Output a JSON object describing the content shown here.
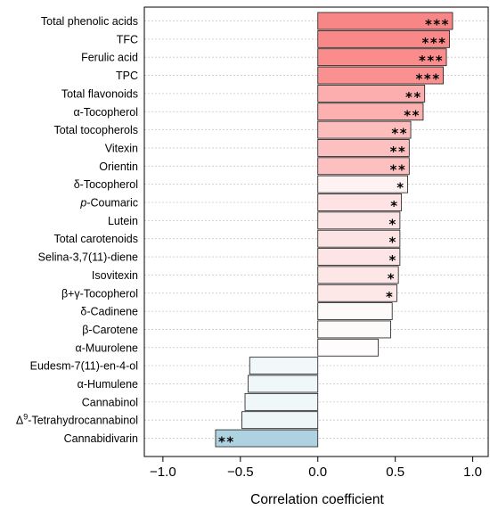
{
  "chart_data": {
    "type": "bar",
    "orientation": "horizontal",
    "xlabel": "Correlation coefficient",
    "xlim": [
      -1.12,
      1.1
    ],
    "xticks": [
      -1.0,
      -0.5,
      0.0,
      0.5,
      1.0
    ],
    "xtick_labels": [
      "−1.0",
      "−0.5",
      "0.0",
      "0.5",
      "1.0"
    ],
    "grid": "horizontal-dotted",
    "categories": [
      {
        "label": "Total phenolic acids",
        "value": 0.87,
        "sig": "***",
        "color": "#f98686"
      },
      {
        "label": "TFC",
        "value": 0.85,
        "sig": "***",
        "color": "#f98989"
      },
      {
        "label": "Ferulic acid",
        "value": 0.83,
        "sig": "***",
        "color": "#fa8c8c"
      },
      {
        "label": "TPC",
        "value": 0.81,
        "sig": "***",
        "color": "#fa9090"
      },
      {
        "label": "Total flavonoids",
        "value": 0.69,
        "sig": "**",
        "color": "#fcaeae"
      },
      {
        "label": "α-Tocopherol",
        "value": 0.68,
        "sig": "**",
        "color": "#fcb0b0"
      },
      {
        "label": "Total tocopherols",
        "value": 0.6,
        "sig": "**",
        "color": "#fdbdbd"
      },
      {
        "label": "Vitexin",
        "value": 0.59,
        "sig": "**",
        "color": "#fdc0c0"
      },
      {
        "label": "Orientin",
        "value": 0.59,
        "sig": "**",
        "color": "#fdc0c0"
      },
      {
        "label": "δ-Tocopherol",
        "value": 0.58,
        "sig": "*",
        "color": "#fef2f2"
      },
      {
        "label": "p-Coumaric",
        "value": 0.54,
        "sig": "*",
        "italic_prefix": "p",
        "color": "#fde3e3"
      },
      {
        "label": "Lutein",
        "value": 0.53,
        "sig": "*",
        "color": "#fde4e4"
      },
      {
        "label": "Total carotenoids",
        "value": 0.53,
        "sig": "*",
        "color": "#fde4e4"
      },
      {
        "label": "Selina-3,7(11)-diene",
        "value": 0.53,
        "sig": "*",
        "color": "#fde5e5"
      },
      {
        "label": "Isovitexin",
        "value": 0.52,
        "sig": "*",
        "color": "#fde6e6"
      },
      {
        "label": "β+γ-Tocopherol",
        "value": 0.51,
        "sig": "*",
        "color": "#fde7e7"
      },
      {
        "label": "δ-Cadinene",
        "value": 0.48,
        "sig": "",
        "color": "#fdfafa"
      },
      {
        "label": "β-Carotene",
        "value": 0.47,
        "sig": "",
        "color": "#fdfafa"
      },
      {
        "label": "α-Muurolene",
        "value": 0.39,
        "sig": "",
        "color": "#fefcfc"
      },
      {
        "label": "Eudesm-7(11)-en-4-ol",
        "value": -0.44,
        "sig": "",
        "color": "#f1f8f9"
      },
      {
        "label": "α-Humulene",
        "value": -0.45,
        "sig": "",
        "color": "#f0f7f9"
      },
      {
        "label": "Cannabinol",
        "value": -0.47,
        "sig": "",
        "color": "#eff7f8"
      },
      {
        "label": "Δ9-Tetrahydrocannabinol",
        "value": -0.49,
        "sig": "",
        "superscript_after": "Δ",
        "superscript": "9",
        "color": "#eef6f8"
      },
      {
        "label": "Cannabidivarin",
        "value": -0.66,
        "sig": "**",
        "color": "#aed2df"
      }
    ]
  }
}
